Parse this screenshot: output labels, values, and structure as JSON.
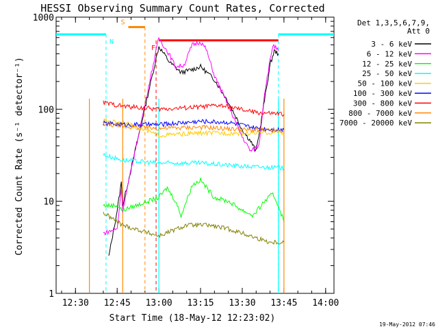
{
  "chart_data": {
    "type": "line",
    "title": "HESSI Observing Summary Count Rates, Corrected",
    "xlabel": "Start Time (18-May-12 12:23:02)",
    "ylabel": "Corrected Count Rate (s⁻¹ detector⁻¹)",
    "footer": "19-May-2012 07:46",
    "y_scale": "log",
    "xlim": [
      "12:23:02",
      "14:03:00"
    ],
    "ylim": [
      1,
      1000
    ],
    "x_ticks": [
      "12:30",
      "12:45",
      "13:00",
      "13:15",
      "13:30",
      "13:45",
      "14:00"
    ],
    "y_ticks": [
      "1",
      "10",
      "100",
      "1000"
    ],
    "legend_header": [
      "Det 1,3,5,6,7,9,",
      "Att 0"
    ],
    "legend_position": "right",
    "series": [
      {
        "name": "3 - 6 keV",
        "color": "#000000",
        "points": [
          [
            "12:42:00",
            2.5
          ],
          [
            "12:45:00",
            8
          ],
          [
            "12:46:30",
            16
          ],
          [
            "12:47:00",
            9
          ],
          [
            "13:00:00",
            480
          ],
          [
            "13:04:00",
            320
          ],
          [
            "13:08:00",
            250
          ],
          [
            "13:12:00",
            270
          ],
          [
            "13:15:00",
            290
          ],
          [
            "13:20:00",
            210
          ],
          [
            "13:25:00",
            120
          ],
          [
            "13:30:00",
            60
          ],
          [
            "13:33:00",
            45
          ],
          [
            "13:35:00",
            35
          ],
          [
            "13:37:00",
            80
          ],
          [
            "13:40:00",
            300
          ],
          [
            "13:41:30",
            430
          ],
          [
            "13:43:00",
            400
          ]
        ]
      },
      {
        "name": "6 - 12 keV",
        "color": "#ff00ff",
        "points": [
          [
            "12:40:00",
            4.5
          ],
          [
            "12:45:00",
            5
          ],
          [
            "12:46:30",
            14
          ],
          [
            "12:47:00",
            8
          ],
          [
            "13:00:00",
            600
          ],
          [
            "13:04:00",
            380
          ],
          [
            "13:06:00",
            290
          ],
          [
            "13:09:00",
            300
          ],
          [
            "13:12:00",
            500
          ],
          [
            "13:15:00",
            540
          ],
          [
            "13:17:00",
            450
          ],
          [
            "13:20:00",
            230
          ],
          [
            "13:25:00",
            110
          ],
          [
            "13:30:00",
            50
          ],
          [
            "13:33:00",
            35
          ],
          [
            "13:36:00",
            40
          ],
          [
            "13:38:00",
            150
          ],
          [
            "13:41:00",
            500
          ],
          [
            "13:43:00",
            430
          ]
        ]
      },
      {
        "name": "12 - 25 keV",
        "color": "#00ff00",
        "points": [
          [
            "12:40:00",
            9
          ],
          [
            "12:45:00",
            9
          ],
          [
            "12:47:00",
            8
          ],
          [
            "13:00:00",
            11
          ],
          [
            "13:03:00",
            14
          ],
          [
            "13:06:00",
            10
          ],
          [
            "13:08:00",
            7
          ],
          [
            "13:12:00",
            15
          ],
          [
            "13:15:00",
            17
          ],
          [
            "13:20:00",
            11
          ],
          [
            "13:25:00",
            10
          ],
          [
            "13:30:00",
            8
          ],
          [
            "13:34:00",
            7
          ],
          [
            "13:38:00",
            10
          ],
          [
            "13:41:00",
            12
          ],
          [
            "13:43:00",
            9
          ],
          [
            "13:45:00",
            6
          ]
        ]
      },
      {
        "name": "25 - 50 keV",
        "color": "#00ffff",
        "points": [
          [
            "12:40:00",
            32
          ],
          [
            "12:45:00",
            29
          ],
          [
            "12:47:00",
            28
          ],
          [
            "13:00:00",
            26
          ],
          [
            "13:15:00",
            26
          ],
          [
            "13:30:00",
            24
          ],
          [
            "13:45:00",
            23
          ]
        ]
      },
      {
        "name": "50 - 100 keV",
        "color": "#ffcc00",
        "points": [
          [
            "12:40:00",
            75
          ],
          [
            "12:47:00",
            72
          ],
          [
            "13:00:00",
            52
          ],
          [
            "13:15:00",
            55
          ],
          [
            "13:30:00",
            55
          ],
          [
            "13:45:00",
            56
          ]
        ]
      },
      {
        "name": "100 - 300 keV",
        "color": "#0000ff",
        "points": [
          [
            "12:40:00",
            70
          ],
          [
            "12:47:00",
            68
          ],
          [
            "13:00:00",
            68
          ],
          [
            "13:15:00",
            74
          ],
          [
            "13:25:00",
            72
          ],
          [
            "13:35:00",
            62
          ],
          [
            "13:45:00",
            60
          ]
        ]
      },
      {
        "name": "300 - 800 keV",
        "color": "#ff0000",
        "points": [
          [
            "12:40:00",
            118
          ],
          [
            "12:47:00",
            108
          ],
          [
            "13:00:00",
            100
          ],
          [
            "13:15:00",
            106
          ],
          [
            "13:22:00",
            110
          ],
          [
            "13:35:00",
            92
          ],
          [
            "13:45:00",
            88
          ]
        ]
      },
      {
        "name": "800 - 7000 keV",
        "color": "#ff8800",
        "points": [
          [
            "12:40:00",
            70
          ],
          [
            "12:47:00",
            65
          ],
          [
            "13:00:00",
            62
          ],
          [
            "13:15:00",
            64
          ],
          [
            "13:30:00",
            60
          ],
          [
            "13:45:00",
            58
          ]
        ]
      },
      {
        "name": "7000 - 20000 keV",
        "color": "#808000",
        "points": [
          [
            "12:40:00",
            7.5
          ],
          [
            "12:45:00",
            6
          ],
          [
            "12:47:00",
            5.5
          ],
          [
            "13:00:00",
            4.2
          ],
          [
            "13:10:00",
            5.5
          ],
          [
            "13:18:00",
            5.5
          ],
          [
            "13:25:00",
            5
          ],
          [
            "13:30:00",
            4.5
          ],
          [
            "13:35:00",
            4
          ],
          [
            "13:40:00",
            3.6
          ],
          [
            "13:45:00",
            3.6
          ]
        ]
      }
    ],
    "flags": [
      {
        "name": "Night",
        "label": "N",
        "color": "#00ffff",
        "value": 650,
        "spans": [
          [
            "12:23:02",
            "12:41:00"
          ],
          [
            "13:43:00",
            "14:03:00"
          ]
        ],
        "boundaries": [
          "12:41:00",
          "13:43:00"
        ]
      },
      {
        "name": "SAA",
        "label": "S",
        "color": "#ff8800",
        "value": 780,
        "spans": [
          [
            "12:49:00",
            "12:55:00"
          ]
        ],
        "boundaries": [
          "12:55:00"
        ]
      },
      {
        "name": "Flare",
        "label": "F",
        "color": "#ff0000",
        "value": 560,
        "spans": [
          [
            "13:00:00",
            "13:43:00"
          ]
        ],
        "boundaries": [
          "12:59:00"
        ]
      }
    ],
    "data_gaps": [
      [
        "12:35:00",
        "12:47:00"
      ],
      [
        "12:47:00",
        "13:00:00"
      ],
      [
        "13:43:00",
        "13:45:00"
      ]
    ]
  }
}
